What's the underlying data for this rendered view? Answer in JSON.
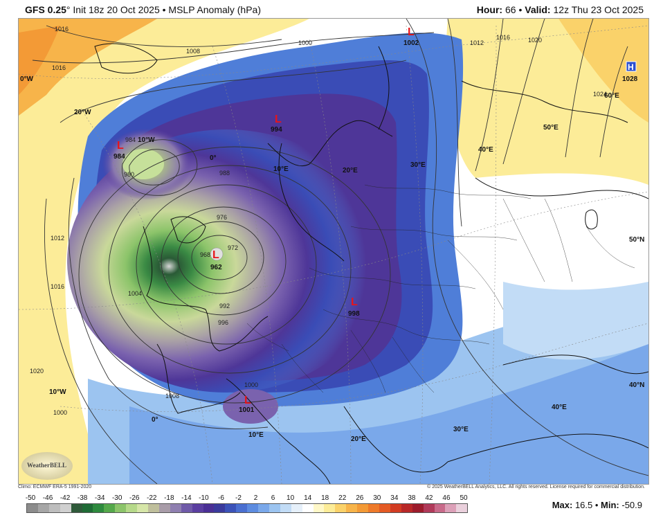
{
  "header": {
    "model": "GFS 0.25",
    "degree": "°",
    "init": " Init 18z 20 Oct 2025",
    "sep": " • ",
    "product": "MSLP Anomaly (hPa)",
    "hour_label": "Hour:",
    "hour_value": " 66",
    "valid_label": "Valid:",
    "valid_value": " 12z Thu 23 Oct 2025"
  },
  "map": {
    "lows": [
      {
        "letter": "L",
        "value": "984"
      },
      {
        "letter": "L",
        "value": "962"
      },
      {
        "letter": "L",
        "value": "994"
      },
      {
        "letter": "L",
        "value": "998"
      },
      {
        "letter": "L",
        "value": "1001"
      },
      {
        "letter": "L",
        "value": "1002"
      }
    ],
    "highs": [
      {
        "letter": "H",
        "value": "1028"
      }
    ],
    "isobar_labels": [
      "1016",
      "1008",
      "1000",
      "1016",
      "988",
      "984",
      "980",
      "976",
      "972",
      "968",
      "1012",
      "1016",
      "1004",
      "996",
      "992",
      "1000",
      "1008",
      "1020",
      "1000",
      "1012",
      "1016",
      "1020",
      "1024"
    ],
    "grid_labels": [
      "0°W",
      "20°W",
      "10°W",
      "0°",
      "10°E",
      "20°E",
      "30°E",
      "40°E",
      "50°E",
      "60°E",
      "50°N",
      "40°N",
      "10°W",
      "0°",
      "10°E",
      "20°E",
      "30°E",
      "40°E"
    ]
  },
  "footer": {
    "climo": "Climo: ECMWF ERA-5 1991-2020",
    "copyright": "© 2025 WeatherBELL Analytics, LLC. All rights reserved. License required for commercial distribution.",
    "logo_text": "WeatherBELL",
    "max_label": "Max:",
    "max_value": " 16.5",
    "min_sep": " • ",
    "min_label": "Min:",
    "min_value": " -50.9"
  },
  "colorbar": {
    "ticks": [
      "-50",
      "-46",
      "-42",
      "-38",
      "-34",
      "-30",
      "-26",
      "-22",
      "-18",
      "-14",
      "-10",
      "-6",
      "-2",
      "2",
      "6",
      "10",
      "14",
      "18",
      "22",
      "26",
      "30",
      "34",
      "38",
      "42",
      "46",
      "50"
    ],
    "colors": [
      "#8c8c8c",
      "#a6a6a6",
      "#bdbdbd",
      "#d0d0d0",
      "#2f5a3a",
      "#1f6b35",
      "#2e8a3e",
      "#55a84b",
      "#8cc46a",
      "#b6d98a",
      "#d6e6a8",
      "#bfbf9c",
      "#a89ca8",
      "#8f7fb0",
      "#6f5aa8",
      "#5a3ea0",
      "#4a2f95",
      "#3a3a9c",
      "#3b52b8",
      "#4a6fd0",
      "#5d8ce0",
      "#7aa8ea",
      "#9cc4f0",
      "#c2dcf6",
      "#e6f0fa",
      "#ffffff",
      "#fff8c8",
      "#fcec98",
      "#fad26a",
      "#f7b44a",
      "#f39a36",
      "#ee7a2a",
      "#e45a24",
      "#d23c22",
      "#b82828",
      "#9c1c2c",
      "#b03a5a",
      "#c86a8a",
      "#dca0b8",
      "#ead0dc"
    ]
  }
}
